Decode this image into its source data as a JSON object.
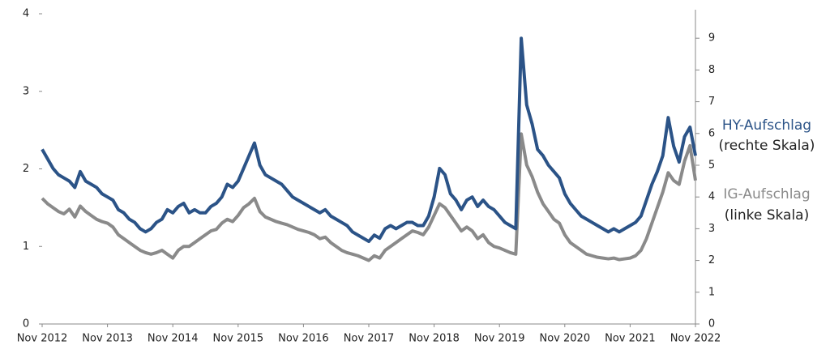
{
  "chart_data": {
    "type": "line",
    "x": [
      "2012-11",
      "2012-12",
      "2013-01",
      "2013-02",
      "2013-03",
      "2013-04",
      "2013-05",
      "2013-06",
      "2013-07",
      "2013-08",
      "2013-09",
      "2013-10",
      "2013-11",
      "2013-12",
      "2014-01",
      "2014-02",
      "2014-03",
      "2014-04",
      "2014-05",
      "2014-06",
      "2014-07",
      "2014-08",
      "2014-09",
      "2014-10",
      "2014-11",
      "2014-12",
      "2015-01",
      "2015-02",
      "2015-03",
      "2015-04",
      "2015-05",
      "2015-06",
      "2015-07",
      "2015-08",
      "2015-09",
      "2015-10",
      "2015-11",
      "2015-12",
      "2016-01",
      "2016-02",
      "2016-03",
      "2016-04",
      "2016-05",
      "2016-06",
      "2016-07",
      "2016-08",
      "2016-09",
      "2016-10",
      "2016-11",
      "2016-12",
      "2017-01",
      "2017-02",
      "2017-03",
      "2017-04",
      "2017-05",
      "2017-06",
      "2017-07",
      "2017-08",
      "2017-09",
      "2017-10",
      "2017-11",
      "2017-12",
      "2018-01",
      "2018-02",
      "2018-03",
      "2018-04",
      "2018-05",
      "2018-06",
      "2018-07",
      "2018-08",
      "2018-09",
      "2018-10",
      "2018-11",
      "2018-12",
      "2019-01",
      "2019-02",
      "2019-03",
      "2019-04",
      "2019-05",
      "2019-06",
      "2019-07",
      "2019-08",
      "2019-09",
      "2019-10",
      "2019-11",
      "2019-12",
      "2020-01",
      "2020-02",
      "2020-03",
      "2020-04",
      "2020-05",
      "2020-06",
      "2020-07",
      "2020-08",
      "2020-09",
      "2020-10",
      "2020-11",
      "2020-12",
      "2021-01",
      "2021-02",
      "2021-03",
      "2021-04",
      "2021-05",
      "2021-06",
      "2021-07",
      "2021-08",
      "2021-09",
      "2021-10",
      "2021-11",
      "2021-12",
      "2022-01",
      "2022-02",
      "2022-03",
      "2022-04",
      "2022-05",
      "2022-06",
      "2022-07",
      "2022-08",
      "2022-09",
      "2022-10",
      "2022-11"
    ],
    "xlim": [
      "2012-11",
      "2022-11"
    ],
    "xticks": [
      {
        "value": "2012-11",
        "label": "Nov 2012"
      },
      {
        "value": "2013-11",
        "label": "Nov 2013"
      },
      {
        "value": "2014-11",
        "label": "Nov 2014"
      },
      {
        "value": "2015-11",
        "label": "Nov 2015"
      },
      {
        "value": "2016-11",
        "label": "Nov 2016"
      },
      {
        "value": "2017-11",
        "label": "Nov 2017"
      },
      {
        "value": "2018-11",
        "label": "Nov 2018"
      },
      {
        "value": "2019-11",
        "label": "Nov 2019"
      },
      {
        "value": "2020-11",
        "label": "Nov 2020"
      },
      {
        "value": "2021-11",
        "label": "Nov 2021"
      },
      {
        "value": "2022-11",
        "label": "Nov 2022"
      }
    ],
    "ylim": [
      0,
      4
    ],
    "yticks": [
      0,
      1,
      2,
      3,
      4
    ],
    "y2lim": [
      0,
      9.77
    ],
    "y2ticks": [
      0,
      1,
      2,
      3,
      4,
      5,
      6,
      7,
      8,
      9
    ],
    "series": [
      {
        "name": "IG-Aufschlag",
        "note": "(linke Skala)",
        "color": "#8a8a8a",
        "values": [
          1.62,
          1.55,
          1.5,
          1.45,
          1.42,
          1.48,
          1.38,
          1.52,
          1.45,
          1.4,
          1.35,
          1.32,
          1.3,
          1.25,
          1.15,
          1.1,
          1.05,
          1.0,
          0.95,
          0.92,
          0.9,
          0.92,
          0.95,
          0.9,
          0.85,
          0.95,
          1.0,
          1.0,
          1.05,
          1.1,
          1.15,
          1.2,
          1.22,
          1.3,
          1.35,
          1.32,
          1.4,
          1.5,
          1.55,
          1.62,
          1.45,
          1.38,
          1.35,
          1.32,
          1.3,
          1.28,
          1.25,
          1.22,
          1.2,
          1.18,
          1.15,
          1.1,
          1.12,
          1.05,
          1.0,
          0.95,
          0.92,
          0.9,
          0.88,
          0.85,
          0.82,
          0.88,
          0.85,
          0.95,
          1.0,
          1.05,
          1.1,
          1.15,
          1.2,
          1.18,
          1.15,
          1.25,
          1.4,
          1.55,
          1.5,
          1.4,
          1.3,
          1.2,
          1.25,
          1.2,
          1.1,
          1.15,
          1.05,
          1.0,
          0.98,
          0.95,
          0.92,
          0.9,
          2.45,
          2.05,
          1.9,
          1.7,
          1.55,
          1.45,
          1.35,
          1.3,
          1.15,
          1.05,
          1.0,
          0.95,
          0.9,
          0.88,
          0.86,
          0.85,
          0.84,
          0.85,
          0.83,
          0.84,
          0.85,
          0.88,
          0.95,
          1.1,
          1.3,
          1.5,
          1.7,
          1.95,
          1.85,
          1.8,
          2.1,
          2.3,
          1.85
        ]
      },
      {
        "name": "HY-Aufschlag",
        "note": "(rechte Skala)",
        "color": "#2b5387",
        "axis": "y2",
        "values": [
          5.5,
          5.2,
          4.9,
          4.7,
          4.6,
          4.5,
          4.3,
          4.8,
          4.5,
          4.4,
          4.3,
          4.1,
          4.0,
          3.9,
          3.6,
          3.5,
          3.3,
          3.2,
          3.0,
          2.9,
          3.0,
          3.2,
          3.3,
          3.6,
          3.5,
          3.7,
          3.8,
          3.5,
          3.6,
          3.5,
          3.5,
          3.7,
          3.8,
          4.0,
          4.4,
          4.3,
          4.5,
          4.9,
          5.3,
          5.7,
          5.0,
          4.7,
          4.6,
          4.5,
          4.4,
          4.2,
          4.0,
          3.9,
          3.8,
          3.7,
          3.6,
          3.5,
          3.6,
          3.4,
          3.3,
          3.2,
          3.1,
          2.9,
          2.8,
          2.7,
          2.6,
          2.8,
          2.7,
          3.0,
          3.1,
          3.0,
          3.1,
          3.2,
          3.2,
          3.1,
          3.1,
          3.4,
          4.0,
          4.9,
          4.7,
          4.1,
          3.9,
          3.6,
          3.9,
          4.0,
          3.7,
          3.9,
          3.7,
          3.6,
          3.4,
          3.2,
          3.1,
          3.0,
          9.0,
          6.9,
          6.3,
          5.5,
          5.3,
          5.0,
          4.8,
          4.6,
          4.1,
          3.8,
          3.6,
          3.4,
          3.3,
          3.2,
          3.1,
          3.0,
          2.9,
          3.0,
          2.9,
          3.0,
          3.1,
          3.2,
          3.4,
          3.9,
          4.4,
          4.8,
          5.3,
          6.5,
          5.6,
          5.1,
          5.9,
          6.2,
          5.3
        ]
      }
    ]
  }
}
